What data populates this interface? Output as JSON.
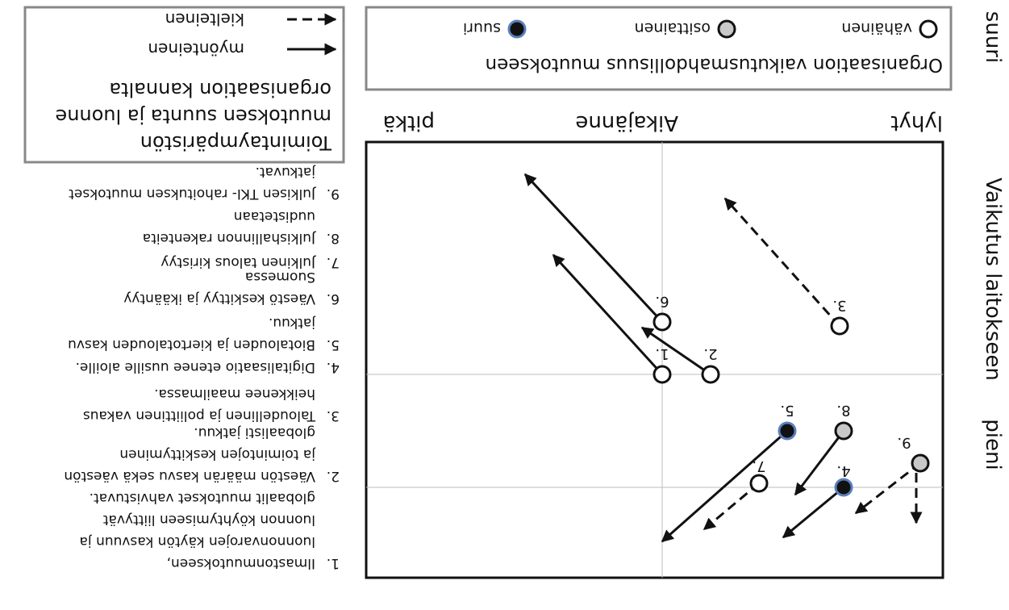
{
  "vertical_axis_label": "Vaikutus laitokseen",
  "vertical_top": "pieni",
  "vertical_bottom": "suuri",
  "time_axis_label": "Aikajänne",
  "time_left": "lyhyt",
  "time_right": "pitkä",
  "impact_legend": {
    "title": "Organisaation vaikutusmahdollisuus muutokseen",
    "items": [
      {
        "key": "vahainen",
        "label": "vähäinen"
      },
      {
        "key": "osittainen",
        "label": "osittainen"
      },
      {
        "key": "suuri",
        "label": "suuri"
      }
    ]
  },
  "direction_legend": {
    "title_lines": [
      "Toimintaympäristön",
      "muutoksen suunta ja luonne",
      "organisaation kannalta"
    ],
    "items": [
      {
        "key": "myonteinen",
        "label": "myönteinen"
      },
      {
        "key": "kielteinen",
        "label": "kielteinen"
      }
    ]
  },
  "drivers": [
    {
      "num": "1.",
      "lines": [
        "Ilmastonmuutokseen,",
        "luonnonvarojen käytön kasvuun ja",
        "luonnon köyhtymiseen liittyvät",
        "globaalit muutokset vahvistuvat."
      ]
    },
    {
      "num": "2.",
      "lines": [
        "Väestön määrän kasvu sekä väestön",
        "ja toimintojen keskittyminen",
        "globaalisti jatkuu."
      ]
    },
    {
      "num": "3.",
      "lines": [
        "Taloudellinen ja poliittinen vakaus",
        "heikkenee maailmassa."
      ]
    },
    {
      "num": "4.",
      "lines": [
        "Digitalisaatio etenee uusille aloille."
      ]
    },
    {
      "num": "5.",
      "lines": [
        "Biotalouden ja kiertotalouden kasvu",
        "jatkuu."
      ]
    },
    {
      "num": "6.",
      "lines": [
        "Väestö keskittyy ja ikääntyy",
        "Suomessa"
      ]
    },
    {
      "num": "7.",
      "lines": [
        "Julkinen talous kiristyy"
      ]
    },
    {
      "num": "8.",
      "lines": [
        "Julkishallinnon rakenteita",
        "uudistetaan"
      ]
    },
    {
      "num": "9.",
      "lines": [
        "Julkisen TKI- rahoituksen muutokset",
        "jatkuvat."
      ]
    }
  ],
  "points": [
    {
      "label": "1.",
      "influence": "vahainen",
      "direction": "myonteinen"
    },
    {
      "label": "2.",
      "influence": "vahainen",
      "direction": "myonteinen"
    },
    {
      "label": "3.",
      "influence": "vahainen",
      "direction": "kielteinen"
    },
    {
      "label": "4.",
      "influence": "suuri",
      "direction": "myonteinen"
    },
    {
      "label": "5.",
      "influence": "suuri",
      "direction": "myonteinen"
    },
    {
      "label": "6.",
      "influence": "vahainen",
      "direction": "myonteinen"
    },
    {
      "label": "7.",
      "influence": "vahainen",
      "direction": "kielteinen"
    },
    {
      "label": "8.",
      "influence": "osittainen",
      "direction": "myonteinen"
    },
    {
      "label": "9.",
      "influence": "osittainen",
      "direction": "kielteinen"
    }
  ]
}
